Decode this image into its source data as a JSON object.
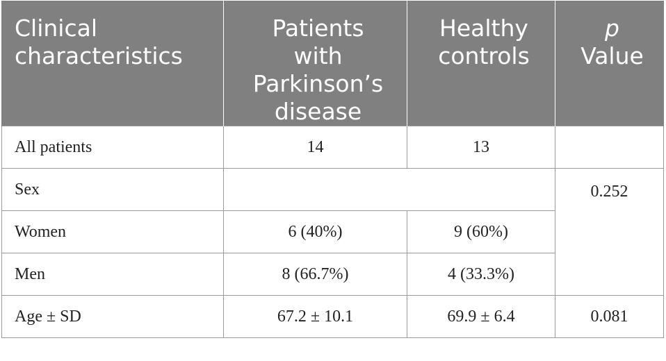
{
  "table": {
    "headers": {
      "col1": [
        "Clinical",
        "characteristics"
      ],
      "col2": [
        "Patients",
        "with",
        "Parkinson’s",
        "disease"
      ],
      "col3": [
        "Healthy",
        "controls"
      ],
      "col4_italic": "p",
      "col4_rest": "Value"
    },
    "rows": {
      "all_patients": {
        "label": "All patients",
        "pd": "14",
        "hc": "13",
        "p": ""
      },
      "sex": {
        "label": "Sex",
        "p": "0.252"
      },
      "women": {
        "label": "Women",
        "pd": "6 (40%)",
        "hc": "9 (60%)"
      },
      "men": {
        "label": "Men",
        "pd": "8 (66.7%)",
        "hc": "4 (33.3%)"
      },
      "age": {
        "label": "Age ± SD",
        "pd": "67.2 ± 10.1",
        "hc": "69.9 ± 6.4",
        "p": "0.081"
      }
    }
  }
}
